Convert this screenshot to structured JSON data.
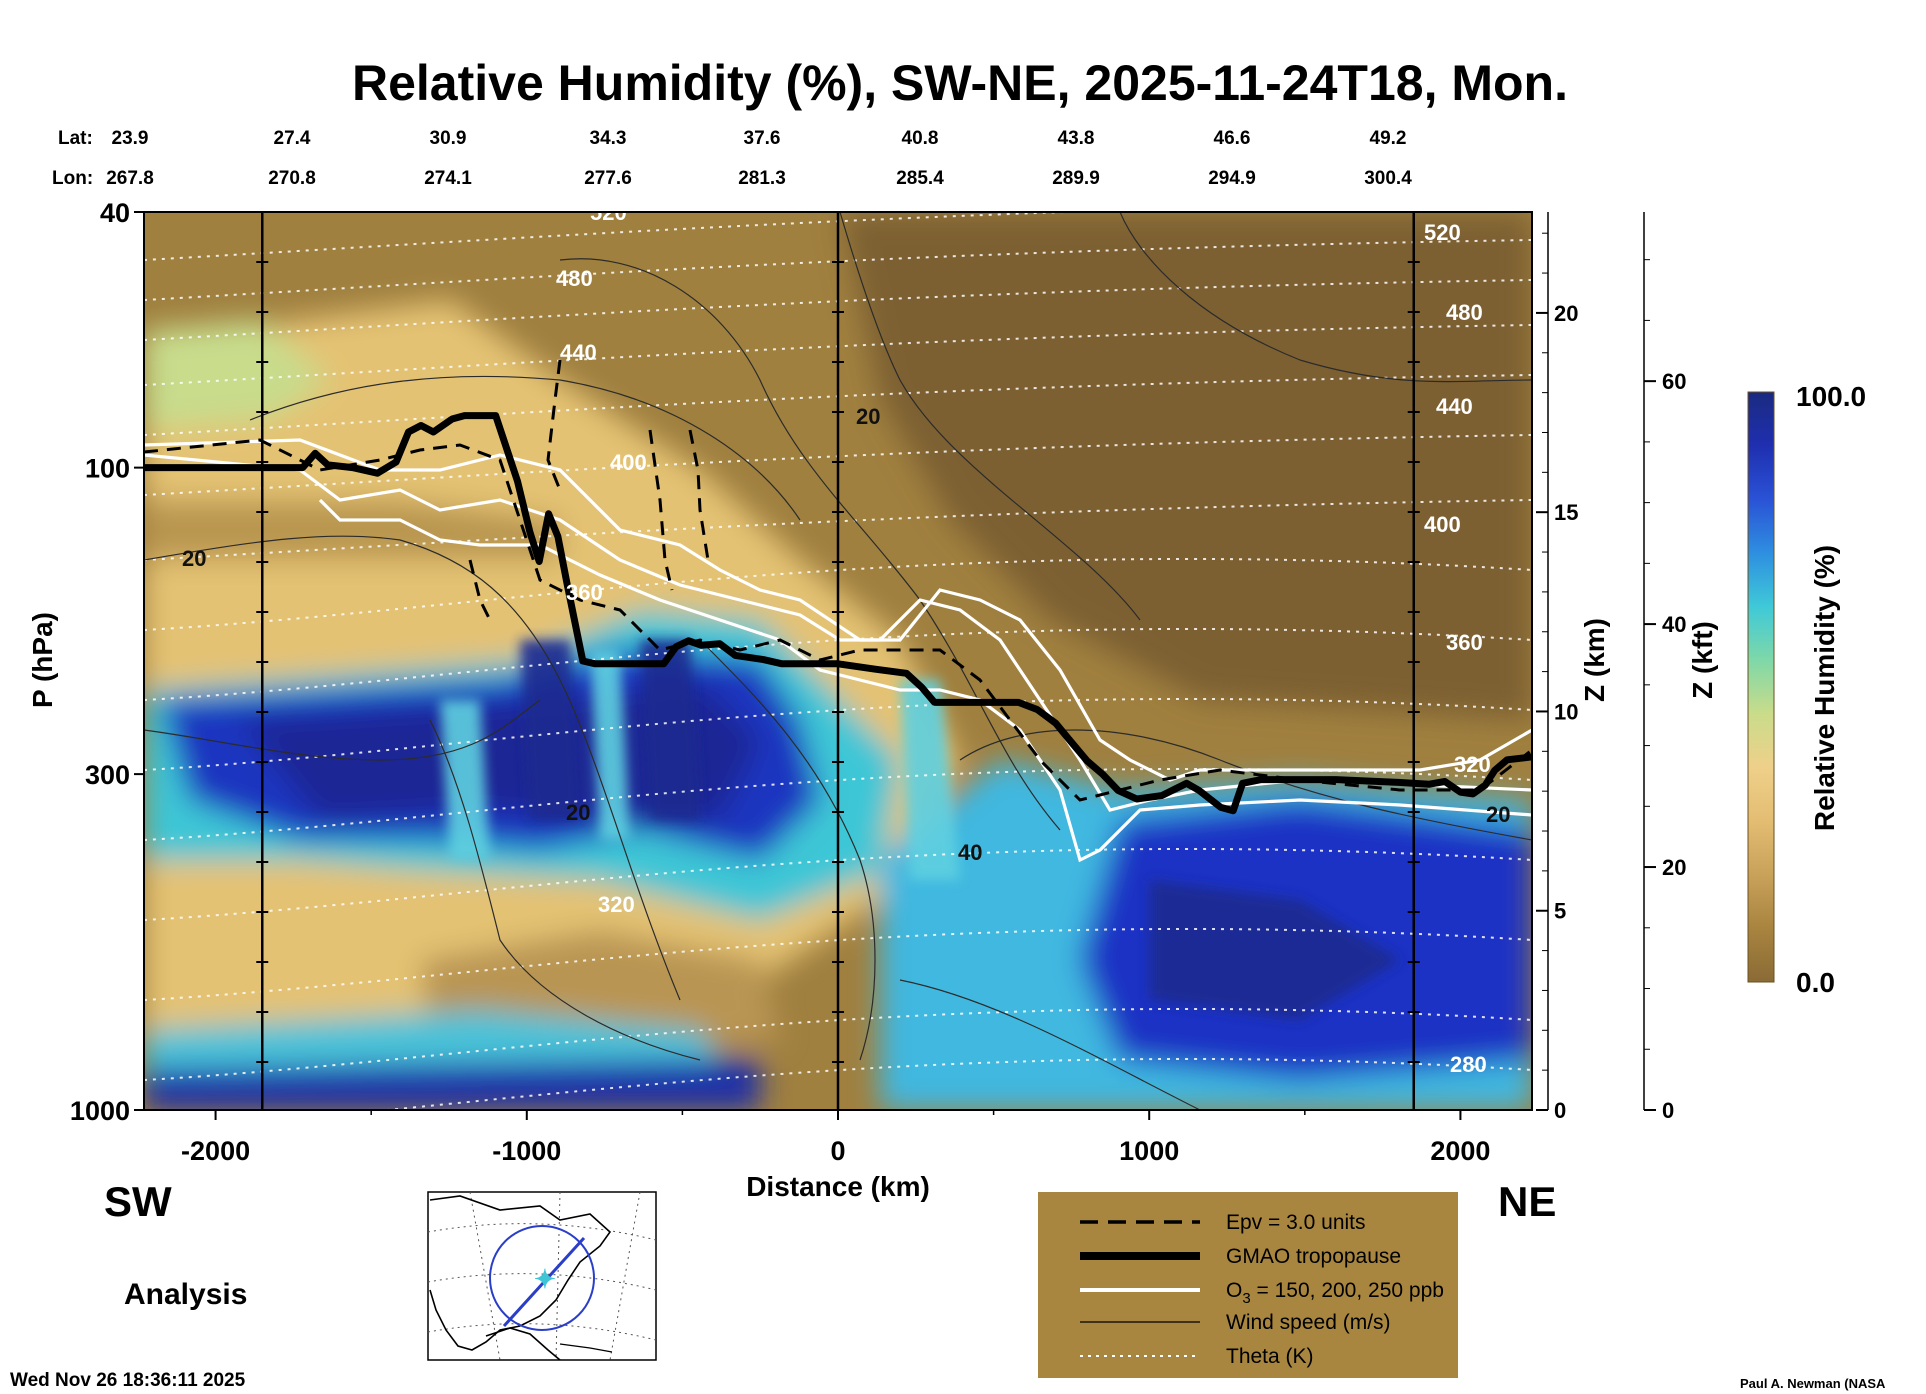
{
  "title": "Relative Humidity (%), SW-NE, 2025-11-24T18, Mon.",
  "lat_label": "Lat:",
  "lon_label": "Lon:",
  "lats": [
    "23.9",
    "27.4",
    "30.9",
    "34.3",
    "37.6",
    "40.8",
    "43.8",
    "46.6",
    "49.2"
  ],
  "lons": [
    "267.8",
    "270.8",
    "274.1",
    "277.6",
    "281.3",
    "285.4",
    "289.9",
    "294.9",
    "300.4"
  ],
  "left_label": "SW",
  "right_label": "NE",
  "analysis_label": "Analysis",
  "footer_date": "Wed Nov 26 18:36:11 2025",
  "footer_credit": "Paul A. Newman (NASA",
  "colors": {
    "dry": "#8a6b35",
    "mid": "#e9c77a",
    "wet": "#1f2f9e",
    "legend_bg": "#a88640"
  },
  "legend": [
    {
      "style": "dashed",
      "label": "Epv = 3.0 units"
    },
    {
      "style": "thick",
      "label": "GMAO tropopause"
    },
    {
      "style": "white",
      "label_main": "O",
      "label_sub": "3",
      "label_rest": " = 150, 200, 250 ppb"
    },
    {
      "style": "thin",
      "label": "Wind speed (m/s)"
    },
    {
      "style": "dotted",
      "label": "Theta (K)"
    }
  ],
  "colorbar": {
    "label": "Relative Humidity (%)",
    "max_label": "100.0",
    "min_label": "0.0",
    "stops": [
      "#8a6b35",
      "#a8843f",
      "#c9a25a",
      "#e3bd72",
      "#efd08a",
      "#c9dc8a",
      "#7fd8a8",
      "#3fc9d8",
      "#2e8fe0",
      "#2a52d6",
      "#1f2fb0",
      "#1a2a80"
    ]
  },
  "chart_data": {
    "type": "heatmap",
    "title": "Relative Humidity (%), SW-NE, 2025-11-24T18, Mon.",
    "xlabel": "Distance (km)",
    "ylabel": "P (hPa)",
    "xlim": [
      -2230,
      2230
    ],
    "ylim": [
      1000,
      40
    ],
    "yscale": "log",
    "x_ticks": [
      -2000,
      -1000,
      0,
      1000,
      2000
    ],
    "x_tick_labels": [
      "-2000",
      "-1000",
      "0",
      "1000",
      "2000"
    ],
    "y_ticks": [
      1000,
      300,
      100,
      40
    ],
    "y_tick_labels": [
      "1000",
      "300",
      "100",
      "40"
    ],
    "z_km_label": "Z (km)",
    "z_km_ticks": [
      0,
      5,
      10,
      15,
      20
    ],
    "z_km_tick_labels": [
      "0",
      "5",
      "10",
      "15",
      "20"
    ],
    "z_kft_label": "Z (kft)",
    "z_kft_ticks": [
      0,
      20,
      40,
      60
    ],
    "z_kft_tick_labels": [
      "0",
      "20",
      "40",
      "60"
    ],
    "vertical_markers_km": [
      -1850,
      0,
      1850
    ],
    "tropopause": {
      "x": [
        -2230,
        -1720,
        -1680,
        -1640,
        -1560,
        -1480,
        -1420,
        -1380,
        -1340,
        -1300,
        -1240,
        -1200,
        -1100,
        -1030,
        -990,
        -960,
        -930,
        -900,
        -870,
        -820,
        -780,
        -560,
        -520,
        -480,
        -440,
        -380,
        -330,
        -300,
        -240,
        -180,
        0,
        120,
        220,
        270,
        310,
        400,
        500,
        580,
        640,
        700,
        740,
        800,
        850,
        900,
        960,
        1040,
        1120,
        1160,
        1230,
        1270,
        1300,
        1360,
        1420,
        1600,
        1800,
        1900,
        1950,
        2000,
        2040,
        2080,
        2110,
        2150,
        2230
      ],
      "p": [
        100,
        100,
        95,
        99,
        100,
        102,
        98,
        88,
        86,
        88,
        84,
        83,
        83,
        105,
        126,
        140,
        118,
        128,
        152,
        200,
        202,
        202,
        190,
        186,
        189,
        188,
        196,
        197,
        199,
        202,
        202,
        206,
        209,
        220,
        232,
        232,
        232,
        232,
        238,
        250,
        264,
        286,
        300,
        318,
        328,
        324,
        310,
        318,
        338,
        342,
        310,
        306,
        306,
        306,
        309,
        311,
        308,
        320,
        322,
        312,
        296,
        285,
        282
      ],
      "units": "hPa"
    },
    "contour_labels": {
      "theta_K": [
        "520",
        "480",
        "440",
        "400",
        "360",
        "320",
        "280"
      ],
      "wind_speed_ms": [
        "20",
        "40"
      ],
      "ozone_ppb": [
        "150",
        "200",
        "250"
      ],
      "epv_units": "3.0"
    },
    "rh_range": [
      0.0,
      100.0
    ],
    "rh_bands": [
      {
        "region": "stratosphere above tropopause",
        "rh": 5
      },
      {
        "region": "upper troposphere south of jet, 200-350 hPa",
        "rh": 90
      },
      {
        "region": "mid troposphere SW, 400-700 hPa",
        "rh": 40
      },
      {
        "region": "boundary layer SW, 900-1000 hPa",
        "rh": 95
      },
      {
        "region": "NE of 900 km below 350 hPa",
        "rh": 90
      }
    ]
  }
}
